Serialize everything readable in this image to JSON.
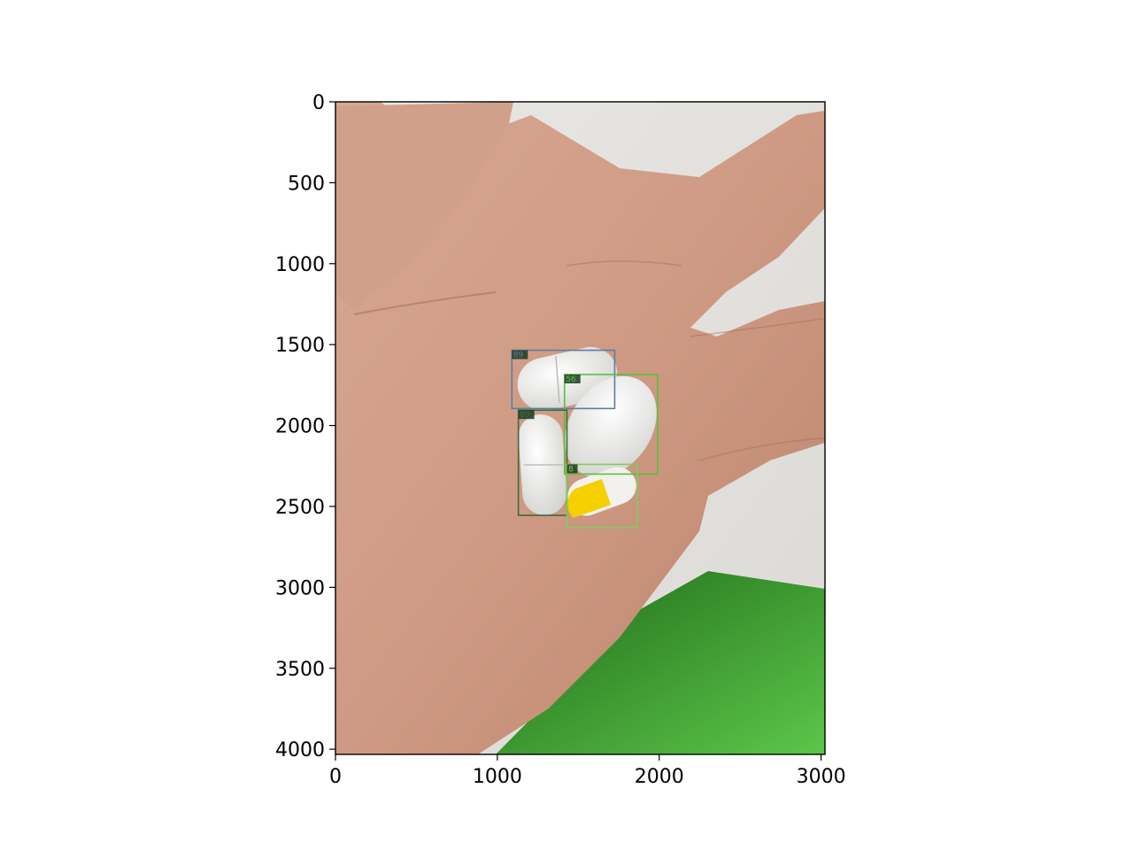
{
  "chart_data": {
    "type": "image",
    "x_ticks": [
      "0",
      "1000",
      "2000",
      "3000"
    ],
    "y_ticks": [
      "0",
      "500",
      "1000",
      "1500",
      "2000",
      "2500",
      "3000",
      "3500",
      "4000"
    ],
    "xlim": [
      0,
      3024
    ],
    "ylim": [
      4032,
      0
    ],
    "image_extent": [
      0,
      3024,
      4032,
      0
    ],
    "detections": [
      {
        "label": "89",
        "color": "#5a7fa0",
        "x0": 1090,
        "y0": 1535,
        "x1": 1725,
        "y1": 1895
      },
      {
        "label": "56",
        "color": "#56c23a",
        "x0": 1415,
        "y0": 1685,
        "x1": 1990,
        "y1": 2300
      },
      {
        "label": "89",
        "color": "#3e6a3e",
        "x0": 1130,
        "y0": 1905,
        "x1": 1430,
        "y1": 2555
      },
      {
        "label": "8",
        "color": "#7ad05a",
        "x0": 1430,
        "y0": 2240,
        "x1": 1865,
        "y1": 2630
      }
    ]
  }
}
